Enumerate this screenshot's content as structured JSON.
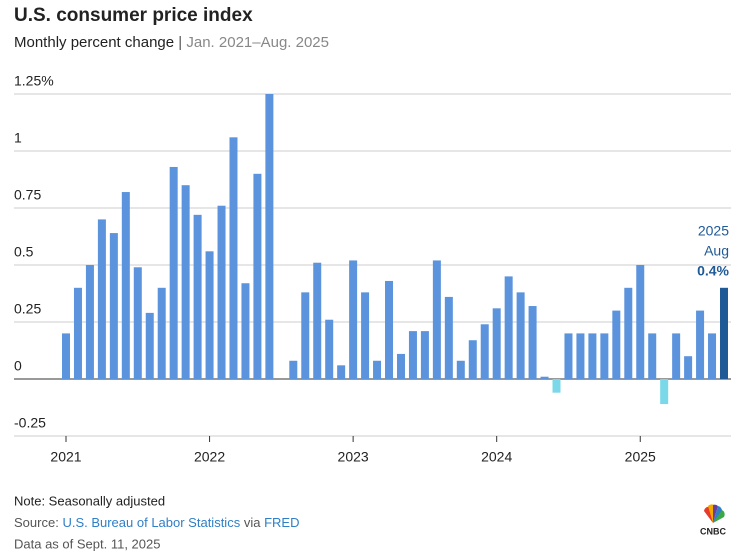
{
  "chart_data": {
    "type": "bar",
    "title": "U.S. consumer price index",
    "subtitle": "Monthly percent change",
    "subtitle_separator": "|",
    "date_range": "Jan. 2021–Aug. 2025",
    "categories": [
      "2021",
      null,
      null,
      null,
      null,
      null,
      null,
      null,
      null,
      null,
      null,
      null,
      "2022",
      null,
      null,
      null,
      null,
      null,
      null,
      null,
      null,
      null,
      null,
      null,
      "2023",
      null,
      null,
      null,
      null,
      null,
      null,
      null,
      null,
      null,
      null,
      null,
      "2024",
      null,
      null,
      null,
      null,
      null,
      null,
      null,
      null,
      null,
      null,
      null,
      "2025",
      null,
      null,
      null,
      null,
      null,
      null,
      null
    ],
    "values": [
      0.2,
      0.4,
      0.5,
      0.7,
      0.64,
      0.82,
      0.49,
      0.29,
      0.4,
      0.93,
      0.85,
      0.72,
      0.56,
      0.76,
      1.06,
      0.42,
      0.9,
      1.25,
      0.0,
      0.08,
      0.38,
      0.51,
      0.26,
      0.06,
      0.52,
      0.38,
      0.08,
      0.43,
      0.11,
      0.21,
      0.21,
      0.52,
      0.36,
      0.08,
      0.17,
      0.24,
      0.31,
      0.45,
      0.38,
      0.32,
      0.01,
      -0.06,
      0.2,
      0.2,
      0.2,
      0.2,
      0.3,
      0.4,
      0.5,
      0.2,
      -0.11,
      0.2,
      0.1,
      0.3,
      0.2,
      0.4
    ],
    "value_labels": [
      null,
      null,
      null,
      null,
      null,
      null,
      null,
      null,
      null,
      null,
      null,
      null,
      null,
      null,
      null,
      null,
      null,
      null,
      null,
      null,
      null,
      null,
      null,
      null,
      null,
      null,
      null,
      null,
      null,
      null,
      null,
      null,
      null,
      null,
      null,
      null,
      null,
      null,
      null,
      null,
      null,
      null,
      null,
      null,
      null,
      null,
      null,
      null,
      null,
      null,
      null,
      null,
      null,
      null,
      null,
      "0.4%"
    ],
    "annotation": [
      "2025",
      "Aug"
    ],
    "color": "#5b93dc",
    "negative_color": "#7ad8e8",
    "highlight_color": "#1f5a96",
    "ylim": [
      -0.25,
      1.25
    ],
    "yticks": [
      -0.25,
      0,
      0.25,
      0.5,
      0.75,
      1,
      {
        "value": 1.25,
        "label": "1.25%"
      }
    ],
    "grid": true,
    "note": "Note: Seasonally adjusted",
    "source": {
      "prefix": "Source:",
      "agency": "U.S. Bureau of Labor Statistics",
      "via": "via",
      "site": "FRED"
    },
    "data_as_of": "Data as of Sept. 11, 2025",
    "logo": "CNBC"
  }
}
